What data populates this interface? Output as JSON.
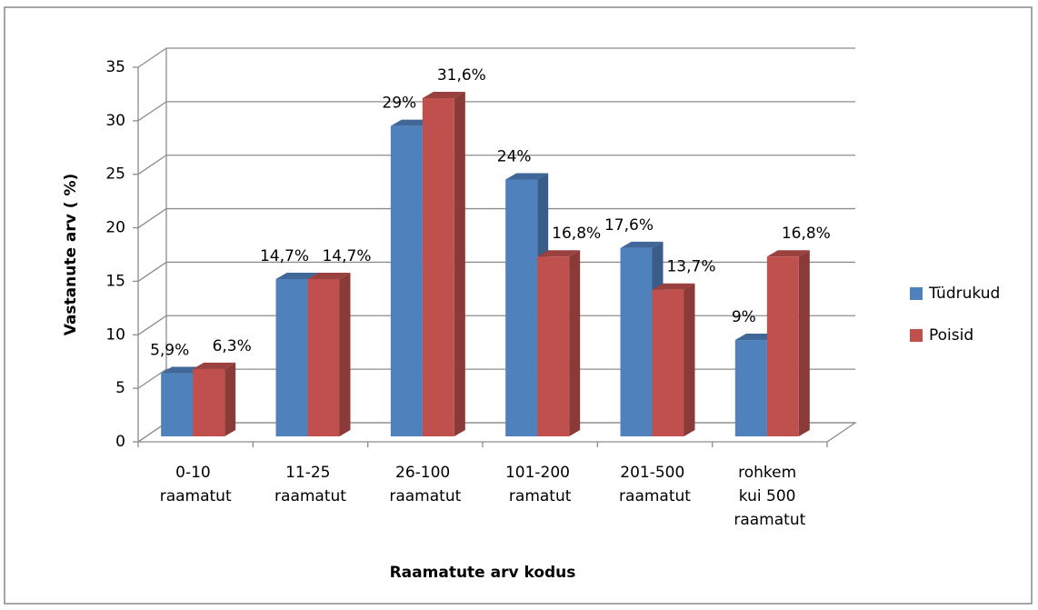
{
  "chart_data": {
    "type": "bar3d",
    "y_label": "Vastanute arv ( %)",
    "x_label": "Raamatute arv kodus",
    "categories": [
      "0-10\nraamatut",
      "11-25\nraamatut",
      "26-100\nraamatut",
      "101-200\nramatut",
      "201-500\nraamatut",
      "rohkem\nkui 500\nraamatut"
    ],
    "series": [
      {
        "name": "Tüdrukud",
        "color": "#4f81bd",
        "values": [
          5.9,
          14.7,
          29,
          24,
          17.6,
          9
        ],
        "value_labels": [
          "5,9%",
          "14,7%",
          "29%",
          "24%",
          "17,6%",
          "9%"
        ]
      },
      {
        "name": "Poisid",
        "color": "#c0504d",
        "values": [
          6.3,
          14.7,
          31.6,
          16.8,
          13.7,
          16.8
        ],
        "value_labels": [
          "6,3%",
          "14,7%",
          "31,6%",
          "16,8%",
          "13,7%",
          "16,8%"
        ]
      }
    ],
    "ylim": [
      0,
      35
    ],
    "yticks": [
      0,
      5,
      10,
      15,
      20,
      25,
      30,
      35
    ],
    "grid": true,
    "legend": "right"
  }
}
